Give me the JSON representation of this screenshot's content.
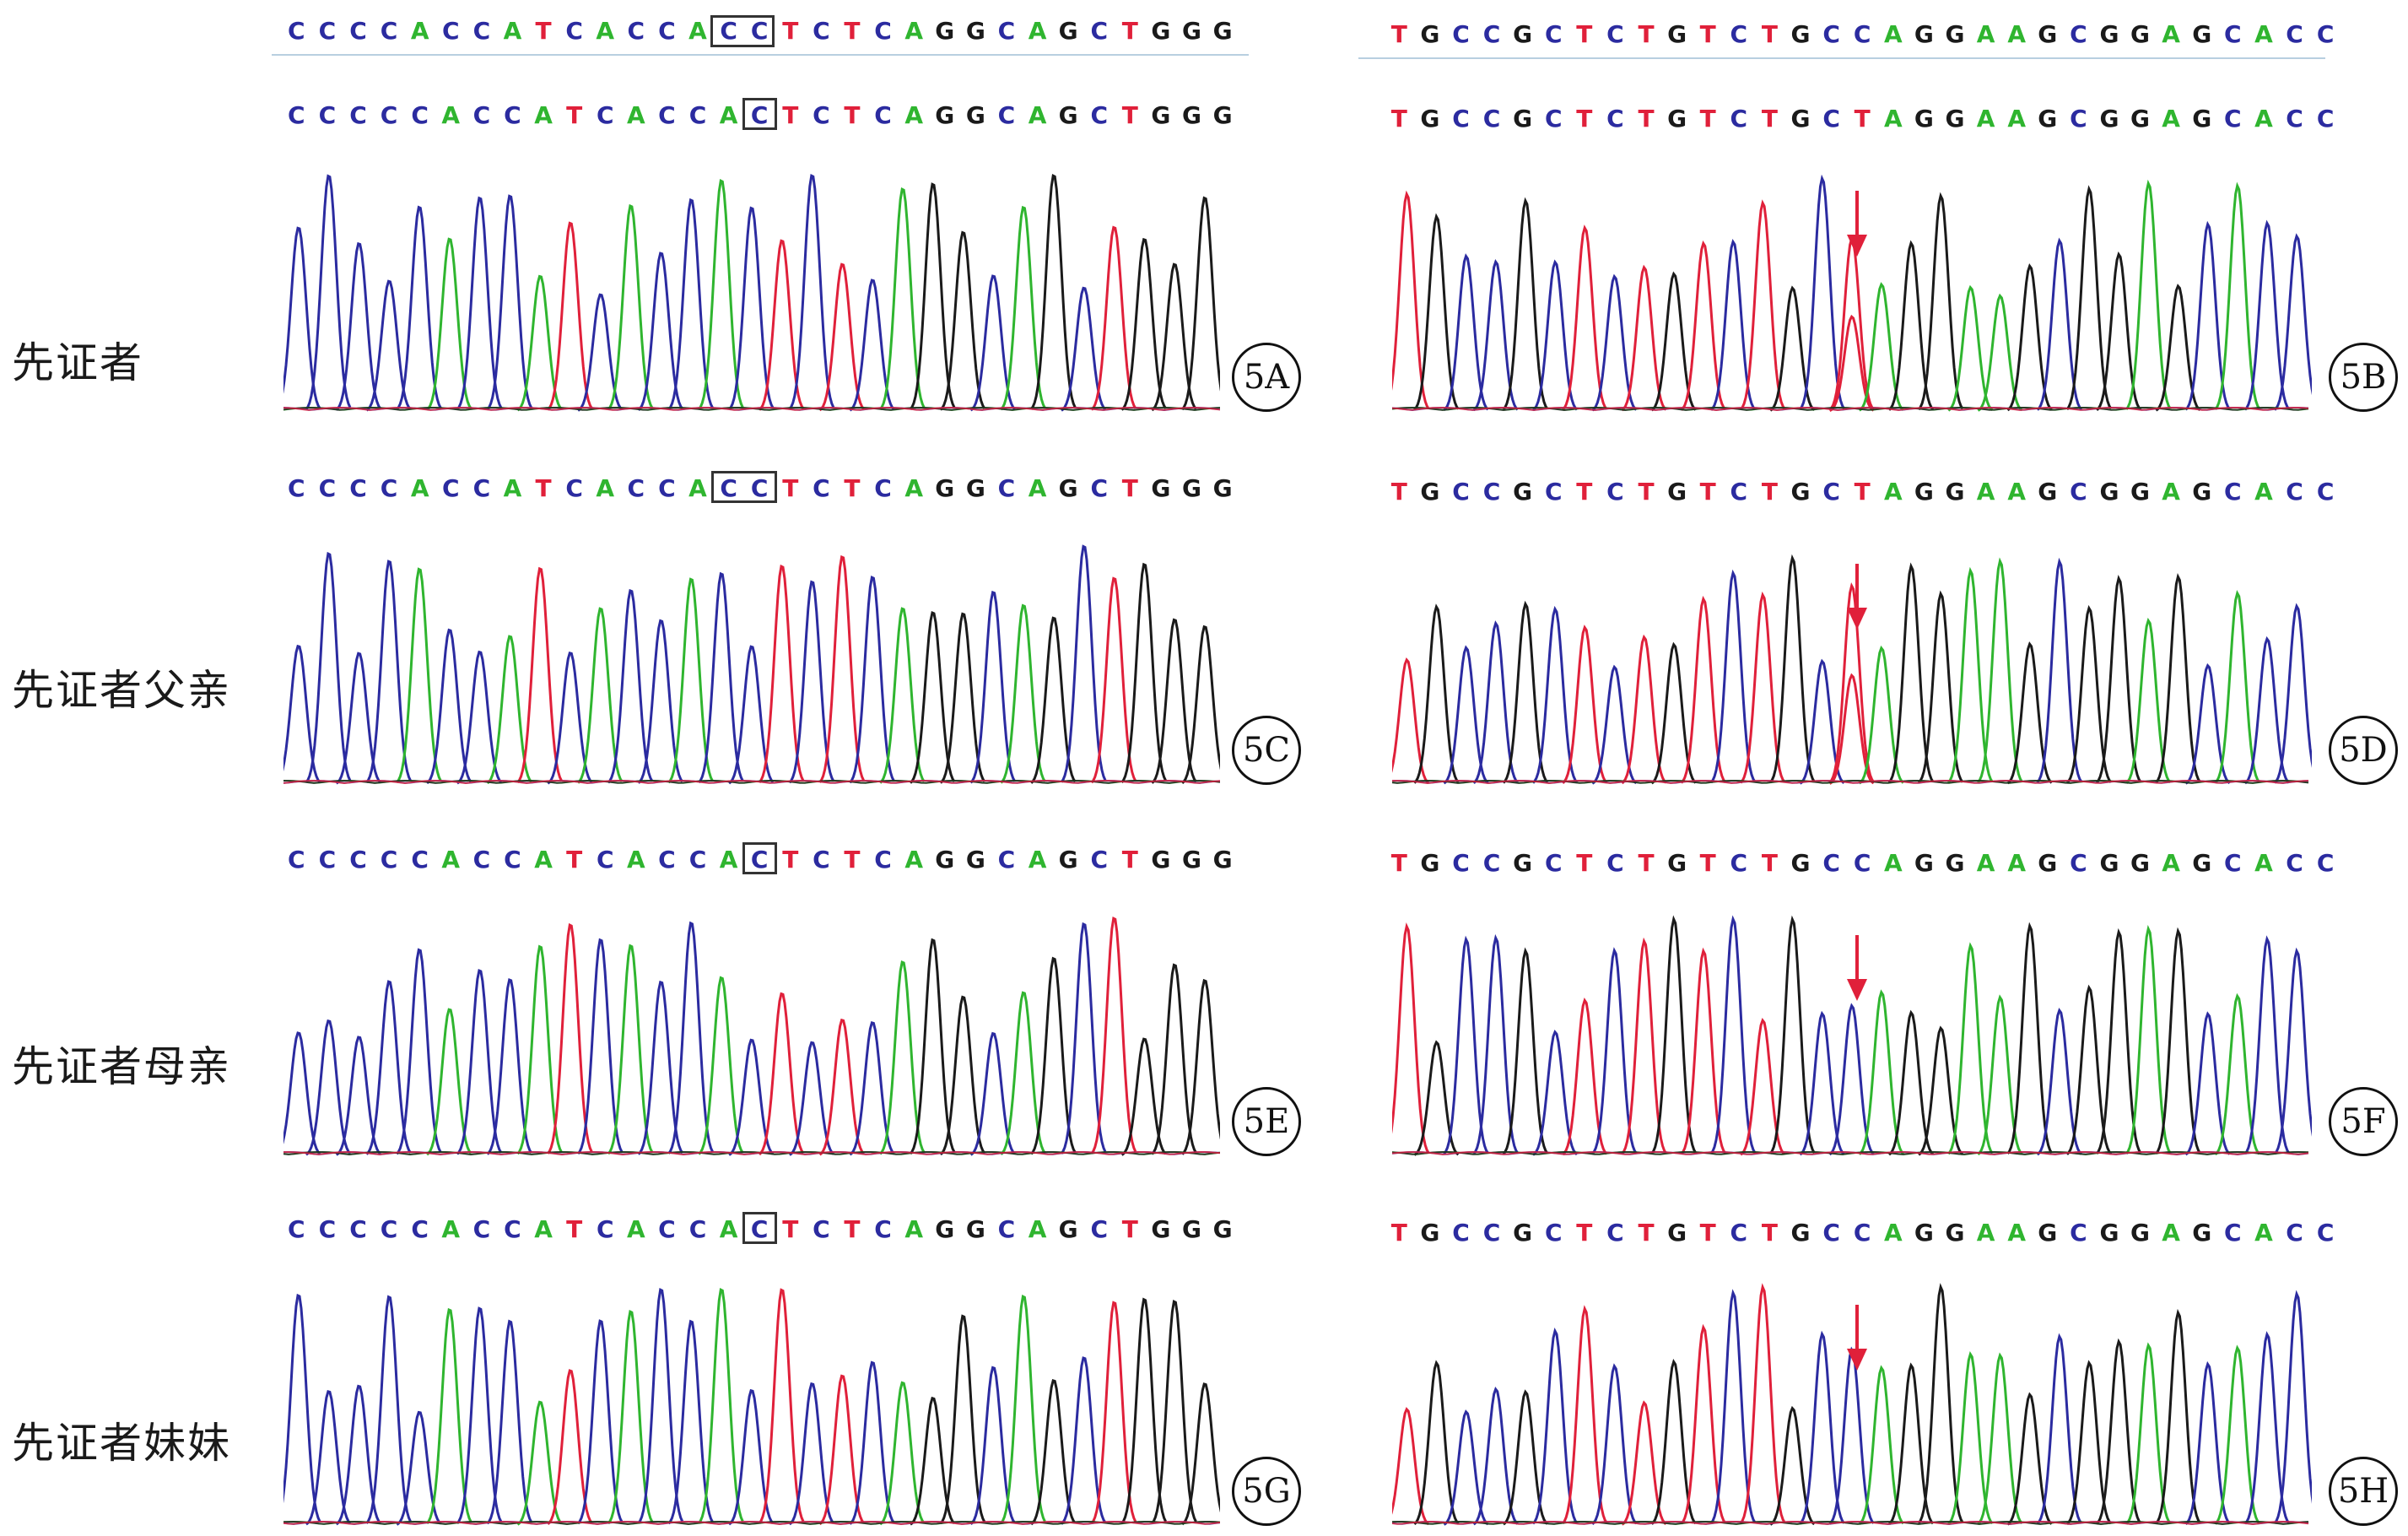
{
  "ref_sequences": {
    "left": "CCCCACCATCACCACCTCTCAGGCAGCTGGG",
    "right": "TGCCGCTCTGTCTGCCAGGAAGCGGAGCACC"
  },
  "base_colors": {
    "A": "#2fb52f",
    "C": "#2b2ba0",
    "G": "#1a1a1a",
    "T": "#e0203a"
  },
  "rows": [
    {
      "label": "先证者",
      "left": {
        "panel": "5A",
        "sequence": "CCCCCACCATCACCACTCTCAGGCAGCTGGG",
        "mark_index": 15,
        "ref_mark": true
      },
      "right": {
        "panel": "5B",
        "sequence": "TGCCGCTCTGTCTGCTAGGAAGCGGAGCACC",
        "arrow": true
      }
    },
    {
      "label": "先证者父亲",
      "left": {
        "panel": "5C",
        "sequence": "CCCCACCATCACCACCTCTCAGGCAGCTGGG",
        "mark_index": 14,
        "mark_width": 2
      },
      "right": {
        "panel": "5D",
        "sequence": "TGCCGCTCTGTCTGCTAGGAAGCGGAGCACC",
        "arrow": true
      }
    },
    {
      "label": "先证者母亲",
      "left": {
        "panel": "5E",
        "sequence": "CCCCCACCATCACCACTCTCAGGCAGCTGGG",
        "mark_index": 15
      },
      "right": {
        "panel": "5F",
        "sequence": "TGCCGCTCTGTCTGCCAGGAAGCGGAGCACC",
        "arrow": true
      }
    },
    {
      "label": "先证者妹妹",
      "left": {
        "panel": "5G",
        "sequence": "CCCCCACCATCACCACTCTCAGGCAGCTGGG",
        "mark_index": 15
      },
      "right": {
        "panel": "5H",
        "sequence": "TGCCGCTCTGTCTGCCAGGAAGCGGAGCACC",
        "arrow": true
      }
    }
  ]
}
